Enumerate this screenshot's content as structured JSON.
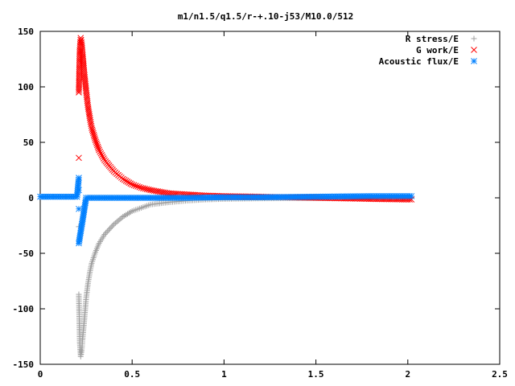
{
  "chart_data": {
    "type": "scatter",
    "title": "m1/n1.5/q1.5/r-+.10-j53/M10.0/512",
    "xlabel": "",
    "ylabel": "",
    "xlim": [
      0,
      2.5
    ],
    "ylim": [
      -150,
      150
    ],
    "x_ticks": [
      "0",
      "0.5",
      "1",
      "1.5",
      "2",
      "2.5"
    ],
    "y_ticks": [
      "150",
      "100",
      "50",
      "0",
      "-50",
      "-100",
      "-150"
    ],
    "grid": false,
    "legend_position": "top-right",
    "series": [
      {
        "name": "R stress/E",
        "marker": "plus",
        "color": "#a0a0a0",
        "points": [
          [
            0.21,
            -26
          ],
          [
            0.21,
            -87
          ],
          [
            0.215,
            -130
          ],
          [
            0.22,
            -143
          ],
          [
            0.225,
            -139
          ],
          [
            0.23,
            -128
          ],
          [
            0.24,
            -110
          ],
          [
            0.25,
            -90
          ],
          [
            0.26,
            -77
          ],
          [
            0.27,
            -67
          ],
          [
            0.28,
            -59
          ],
          [
            0.3,
            -49
          ],
          [
            0.32,
            -41
          ],
          [
            0.35,
            -33
          ],
          [
            0.4,
            -24
          ],
          [
            0.45,
            -17
          ],
          [
            0.5,
            -12
          ],
          [
            0.55,
            -9
          ],
          [
            0.6,
            -6
          ],
          [
            0.7,
            -4
          ],
          [
            0.8,
            -2.5
          ],
          [
            0.9,
            -1.5
          ],
          [
            1.0,
            -1
          ],
          [
            1.2,
            -0.5
          ],
          [
            1.5,
            -0.2
          ],
          [
            1.8,
            0
          ],
          [
            2.0,
            0
          ],
          [
            2.02,
            0
          ]
        ]
      },
      {
        "name": "G work/E",
        "marker": "cross",
        "color": "#ff0000",
        "points": [
          [
            0.21,
            36
          ],
          [
            0.21,
            95
          ],
          [
            0.215,
            133
          ],
          [
            0.22,
            144
          ],
          [
            0.225,
            140
          ],
          [
            0.23,
            130
          ],
          [
            0.24,
            112
          ],
          [
            0.25,
            96
          ],
          [
            0.26,
            82
          ],
          [
            0.27,
            72
          ],
          [
            0.28,
            63
          ],
          [
            0.3,
            52
          ],
          [
            0.32,
            43
          ],
          [
            0.35,
            34
          ],
          [
            0.4,
            24
          ],
          [
            0.45,
            17
          ],
          [
            0.5,
            12
          ],
          [
            0.55,
            9
          ],
          [
            0.6,
            7
          ],
          [
            0.7,
            4
          ],
          [
            0.8,
            3
          ],
          [
            0.9,
            2
          ],
          [
            1.0,
            1.5
          ],
          [
            1.2,
            1
          ],
          [
            1.5,
            0
          ],
          [
            1.8,
            -1
          ],
          [
            2.0,
            -1.5
          ],
          [
            2.02,
            -1.5
          ]
        ]
      },
      {
        "name": "Acoustic flux/E",
        "marker": "star",
        "color": "#0080ff",
        "points": [
          [
            0.0,
            1
          ],
          [
            0.05,
            1
          ],
          [
            0.1,
            1
          ],
          [
            0.15,
            1
          ],
          [
            0.2,
            1
          ],
          [
            0.21,
            18
          ],
          [
            0.21,
            7
          ],
          [
            0.21,
            -10
          ],
          [
            0.21,
            -41
          ],
          [
            0.25,
            0
          ],
          [
            0.3,
            0
          ],
          [
            0.4,
            0
          ],
          [
            0.5,
            0
          ],
          [
            0.6,
            0
          ],
          [
            0.8,
            0
          ],
          [
            1.0,
            0.5
          ],
          [
            1.2,
            0.5
          ],
          [
            1.5,
            1
          ],
          [
            1.8,
            1.5
          ],
          [
            2.0,
            1.5
          ],
          [
            2.02,
            1.5
          ]
        ]
      }
    ]
  }
}
